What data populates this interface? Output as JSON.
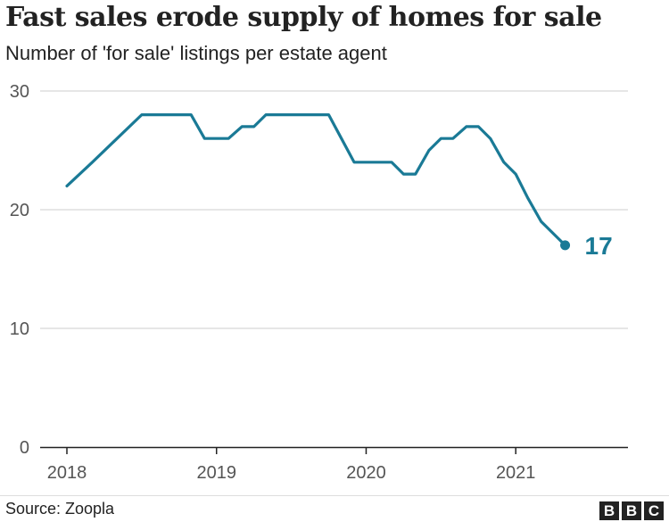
{
  "title": "Fast sales erode supply of homes for sale",
  "subtitle": "Number of 'for sale' listings per estate agent",
  "source": "Source: Zoopla",
  "logo": [
    "B",
    "B",
    "C"
  ],
  "colors": {
    "line": "#1a7a96",
    "grid": "#cccccc",
    "axis": "#222222",
    "text": "#222222",
    "tick_text": "#555555"
  },
  "chart_data": {
    "type": "line",
    "title": "Fast sales erode supply of homes for sale",
    "subtitle": "Number of 'for sale' listings per estate agent",
    "xlabel": "",
    "ylabel": "",
    "ylim": [
      0,
      30
    ],
    "xlim": [
      2018.0,
      2021.75
    ],
    "yticks": [
      0,
      10,
      20,
      30
    ],
    "ytick_labels": [
      "0",
      "10",
      "20",
      "30"
    ],
    "xticks": [
      2018,
      2019,
      2020,
      2021
    ],
    "xtick_labels": [
      "2018",
      "2019",
      "2020",
      "2021"
    ],
    "grid": true,
    "end_label": "17",
    "series": [
      {
        "name": "Listings per estate agent",
        "x": [
          2018.0,
          2018.17,
          2018.5,
          2018.67,
          2018.83,
          2018.92,
          2019.08,
          2019.17,
          2019.25,
          2019.33,
          2019.5,
          2019.75,
          2019.92,
          2020.08,
          2020.17,
          2020.25,
          2020.33,
          2020.42,
          2020.5,
          2020.58,
          2020.67,
          2020.75,
          2020.83,
          2020.92,
          2021.0,
          2021.08,
          2021.17,
          2021.33
        ],
        "y": [
          22,
          24,
          28,
          28,
          28,
          26,
          26,
          27,
          27,
          28,
          28,
          28,
          24,
          24,
          24,
          23,
          23,
          25,
          26,
          26,
          27,
          27,
          26,
          24,
          23,
          21,
          19,
          17
        ]
      }
    ]
  }
}
